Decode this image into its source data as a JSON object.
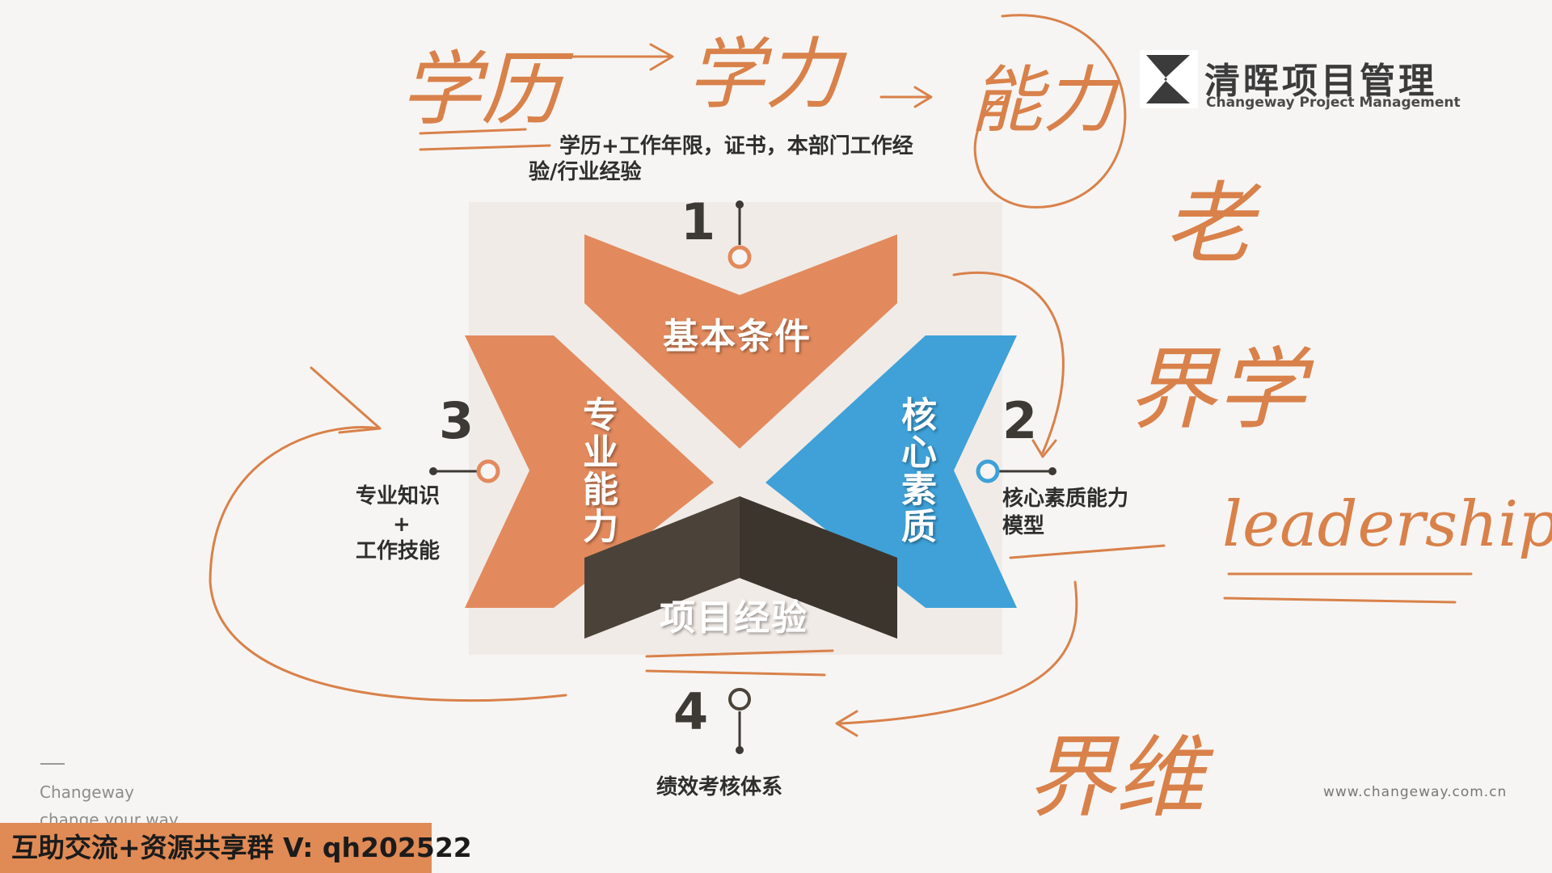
{
  "logo": {
    "cn": "清晖项目管理",
    "en": "Changeway Project Management"
  },
  "diagram": {
    "items": [
      {
        "number": "1",
        "title": "基本条件",
        "description": "学历+工作年限，证书，本部门工作经验/行业经验",
        "description_line1": "学历+工作年限，证书，本部门工作经",
        "description_line2": "验/行业经验",
        "color": "#e28a5d"
      },
      {
        "number": "2",
        "title": "核心素质",
        "description_line1": "核心素质能力",
        "description_line2": "模型",
        "color": "#3fa1d8"
      },
      {
        "number": "3",
        "title": "专业能力",
        "description_line1": "专业知识",
        "description_line2": "+",
        "description_line3": "工作技能",
        "color": "#e28a5d"
      },
      {
        "number": "4",
        "title": "项目经验",
        "description": "绩效考核体系",
        "color": "#4b4339"
      }
    ]
  },
  "annotations": {
    "top_line": [
      "学历",
      "学力",
      "能力"
    ],
    "side": [
      "老",
      "界学",
      "界维"
    ],
    "english": "leadership"
  },
  "footer": {
    "brand": "Changeway",
    "slogan": "change your way",
    "website": "www.changeway.com.cn"
  },
  "banner": {
    "text": "互助交流+资源共享群 V: qh202522"
  },
  "colors": {
    "accent_orange": "#e28a5d",
    "accent_blue": "#3fa1d8",
    "dark": "#4b4339",
    "ink": "#d9814a"
  }
}
